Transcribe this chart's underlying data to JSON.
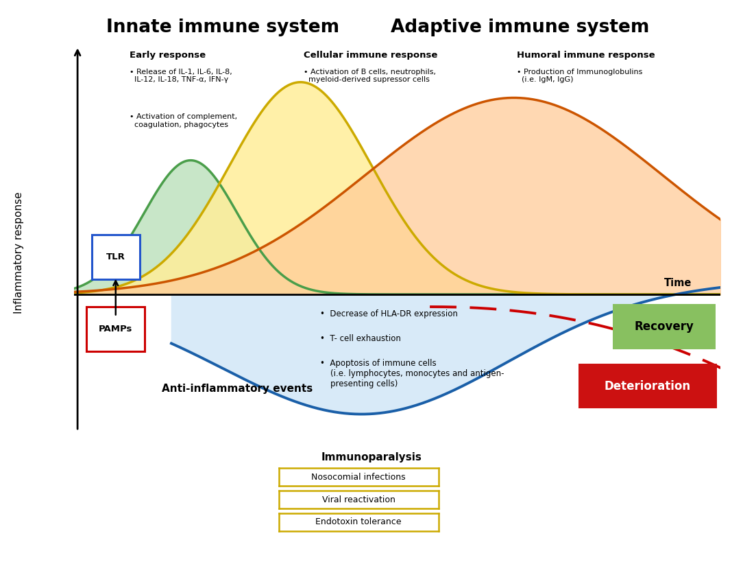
{
  "title_innate": "Innate immune system",
  "title_adaptive": "Adaptive immune system",
  "ylabel": "Inflammatory response",
  "xlabel_time": "Time",
  "early_response_title": "Early response",
  "cellular_response_title": "Cellular immune response",
  "humoral_response_title": "Humoral immune response",
  "anti_inflammatory_label": "Anti-inflammatory events",
  "immunoparalysis_label": "Immunoparalysis",
  "immunoparalysis_items": [
    "Nosocomial infections",
    "Viral reactivation",
    "Endotoxin tolerance"
  ],
  "anti_inflam_bullets": [
    "•  Decrease of HLA-DR expression",
    "•  T- cell exhaustion",
    "•  Apoptosis of immune cells\n    (i.e. lymphocytes, monocytes and antigen-\n    presenting cells)"
  ],
  "recovery_label": "Recovery",
  "deterioration_label": "Deterioration",
  "tlr_label": "TLR",
  "pamps_label": "PAMPs",
  "green_curve_color": "#4a9e4a",
  "green_fill_color": "#c8e6c8",
  "yellow_curve_color": "#ccaa00",
  "yellow_fill_color": "#ffee99",
  "orange_curve_color": "#cc5500",
  "orange_fill_color": "#ffcc99",
  "blue_curve_color": "#1a5fa8",
  "blue_fill_color": "#d8eaf8",
  "red_dashed_color": "#cc0000",
  "recovery_bg": "#88c060",
  "deterioration_bg": "#cc1111",
  "tlr_border": "#2255cc",
  "pamps_border": "#cc0000",
  "immunoparalysis_border": "#ccaa00",
  "background_color": "#ffffff",
  "xlim": [
    0,
    10
  ],
  "ylim": [
    -1.0,
    1.0
  ],
  "baseline_y": 0.0
}
